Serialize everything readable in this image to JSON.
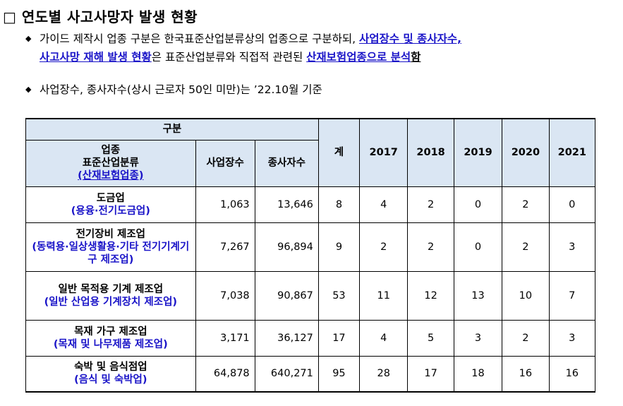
{
  "heading": "□ 연도별 사고사망자 발생 현황",
  "notes": {
    "note1": {
      "text1": "가이드 제작시 업종 구분은 한국표준산업분류상의 업종으로 구분하되, ",
      "hl1": "사업장수 및 종사자수,",
      "hl2": "사고사망 재해 발생 현황",
      "text2": "은 표준산업분류와 직접적 관련된 ",
      "hl3": "산재보험업종으로 분석",
      "hl4": "함"
    },
    "note2": "사업장수, 종사자수(상시 근로자 50인 미만)는 ’22.10월 기준"
  },
  "table": {
    "header": {
      "group": "구분",
      "industry_lines": [
        "업종",
        "표준산업분류"
      ],
      "industry_sub": "(산재보험업종)",
      "workplaces": "사업장수",
      "workers": "종사자수",
      "total": "계",
      "years": [
        "2017",
        "2018",
        "2019",
        "2020",
        "2021"
      ]
    },
    "rows": [
      {
        "name": "도금업",
        "sub": "(용융·전기도금업)",
        "workplaces": "1,063",
        "workers": "13,646",
        "total": "8",
        "years": [
          "4",
          "2",
          "0",
          "2",
          "0"
        ]
      },
      {
        "name": "전기장비 제조업",
        "sub": "(동력용·일상생활용·기타 전기기계기구 제조업)",
        "workplaces": "7,267",
        "workers": "96,894",
        "total": "9",
        "years": [
          "2",
          "2",
          "0",
          "2",
          "3"
        ]
      },
      {
        "name": "일반 목적용 기계 제조업",
        "sub": "(일반 산업용 기계장치 제조업)",
        "workplaces": "7,038",
        "workers": "90,867",
        "total": "53",
        "years": [
          "11",
          "12",
          "13",
          "10",
          "7"
        ]
      },
      {
        "name": "목재 가구 제조업",
        "sub": "(목재 및 나무제품 제조업)",
        "workplaces": "3,171",
        "workers": "36,127",
        "total": "17",
        "years": [
          "4",
          "5",
          "3",
          "2",
          "3"
        ]
      },
      {
        "name": "숙박 및 음식점업",
        "sub": "(음식 및 숙박업)",
        "workplaces": "64,878",
        "workers": "640,271",
        "total": "95",
        "years": [
          "28",
          "17",
          "18",
          "16",
          "16"
        ]
      }
    ]
  },
  "colors": {
    "header_bg": "#dae6f3",
    "accent": "#1a14c8"
  }
}
